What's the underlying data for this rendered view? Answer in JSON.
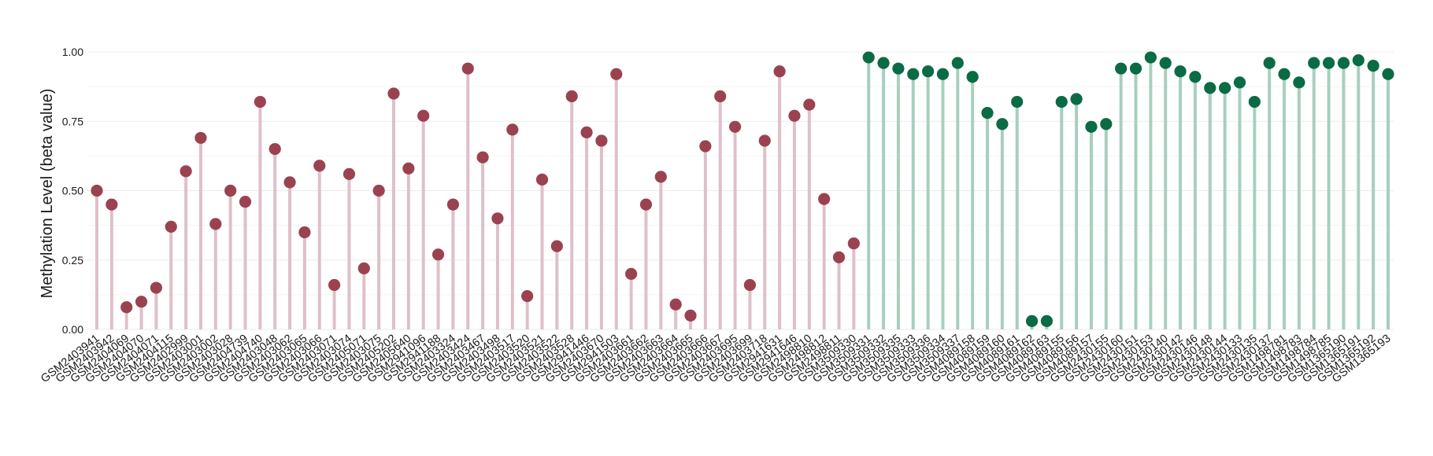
{
  "chart_data": {
    "type": "lollipop",
    "title": "",
    "xlabel": "",
    "ylabel": "Methylation Level (beta value)",
    "ylim": [
      0,
      1
    ],
    "yticks": [
      "0.00",
      "0.25",
      "0.50",
      "0.75",
      "1.00"
    ],
    "grid": true,
    "legend": "none",
    "group_colors": {
      "group1": {
        "stem": "#dfc0c8",
        "point": "#9b4250"
      },
      "group2": {
        "stem": "#a8cfbe",
        "point": "#0a6b45"
      }
    },
    "points": [
      {
        "x": "GSM2403941",
        "y": 0.5,
        "group": "group1"
      },
      {
        "x": "GSM2403942",
        "y": 0.45,
        "group": "group1"
      },
      {
        "x": "GSM2404069",
        "y": 0.08,
        "group": "group1"
      },
      {
        "x": "GSM2404070",
        "y": 0.1,
        "group": "group1"
      },
      {
        "x": "GSM2404071",
        "y": 0.15,
        "group": "group1"
      },
      {
        "x": "GSM2404115",
        "y": 0.37,
        "group": "group1"
      },
      {
        "x": "GSM2402999",
        "y": 0.57,
        "group": "group1"
      },
      {
        "x": "GSM2403001",
        "y": 0.69,
        "group": "group1"
      },
      {
        "x": "GSM2403002",
        "y": 0.38,
        "group": "group1"
      },
      {
        "x": "GSM2403028",
        "y": 0.5,
        "group": "group1"
      },
      {
        "x": "GSM2404739",
        "y": 0.46,
        "group": "group1"
      },
      {
        "x": "GSM2404740",
        "y": 0.82,
        "group": "group1"
      },
      {
        "x": "GSM2403048",
        "y": 0.65,
        "group": "group1"
      },
      {
        "x": "GSM2403062",
        "y": 0.53,
        "group": "group1"
      },
      {
        "x": "GSM2403065",
        "y": 0.35,
        "group": "group1"
      },
      {
        "x": "GSM2403066",
        "y": 0.59,
        "group": "group1"
      },
      {
        "x": "GSM2403071",
        "y": 0.16,
        "group": "group1"
      },
      {
        "x": "GSM2403074",
        "y": 0.56,
        "group": "group1"
      },
      {
        "x": "GSM2405071",
        "y": 0.22,
        "group": "group1"
      },
      {
        "x": "GSM2403075",
        "y": 0.5,
        "group": "group1"
      },
      {
        "x": "GSM2405202",
        "y": 0.85,
        "group": "group1"
      },
      {
        "x": "GSM2405640",
        "y": 0.58,
        "group": "group1"
      },
      {
        "x": "GSM2941096",
        "y": 0.77,
        "group": "group1"
      },
      {
        "x": "GSM2941188",
        "y": 0.27,
        "group": "group1"
      },
      {
        "x": "GSM2403324",
        "y": 0.45,
        "group": "group1"
      },
      {
        "x": "GSM2403424",
        "y": 0.94,
        "group": "group1"
      },
      {
        "x": "GSM2403467",
        "y": 0.62,
        "group": "group1"
      },
      {
        "x": "GSM2403498",
        "y": 0.4,
        "group": "group1"
      },
      {
        "x": "GSM2403517",
        "y": 0.72,
        "group": "group1"
      },
      {
        "x": "GSM2403520",
        "y": 0.12,
        "group": "group1"
      },
      {
        "x": "GSM2403521",
        "y": 0.54,
        "group": "group1"
      },
      {
        "x": "GSM2403522",
        "y": 0.3,
        "group": "group1"
      },
      {
        "x": "GSM2403528",
        "y": 0.84,
        "group": "group1"
      },
      {
        "x": "GSM2941446",
        "y": 0.71,
        "group": "group1"
      },
      {
        "x": "GSM2403670",
        "y": 0.68,
        "group": "group1"
      },
      {
        "x": "GSM2941503",
        "y": 0.92,
        "group": "group1"
      },
      {
        "x": "GSM2403661",
        "y": 0.2,
        "group": "group1"
      },
      {
        "x": "GSM2403662",
        "y": 0.45,
        "group": "group1"
      },
      {
        "x": "GSM2403663",
        "y": 0.55,
        "group": "group1"
      },
      {
        "x": "GSM2403664",
        "y": 0.09,
        "group": "group1"
      },
      {
        "x": "GSM2403665",
        "y": 0.05,
        "group": "group1"
      },
      {
        "x": "GSM2403666",
        "y": 0.66,
        "group": "group1"
      },
      {
        "x": "GSM2403667",
        "y": 0.84,
        "group": "group1"
      },
      {
        "x": "GSM2403695",
        "y": 0.73,
        "group": "group1"
      },
      {
        "x": "GSM2403699",
        "y": 0.16,
        "group": "group1"
      },
      {
        "x": "GSM2403718",
        "y": 0.68,
        "group": "group1"
      },
      {
        "x": "GSM2941631",
        "y": 0.93,
        "group": "group1"
      },
      {
        "x": "GSM2941646",
        "y": 0.77,
        "group": "group1"
      },
      {
        "x": "GSM2498810",
        "y": 0.81,
        "group": "group1"
      },
      {
        "x": "GSM2498812",
        "y": 0.47,
        "group": "group1"
      },
      {
        "x": "GSM2498811",
        "y": 0.26,
        "group": "group1"
      },
      {
        "x": "GSM3509330",
        "y": 0.31,
        "group": "group1"
      },
      {
        "x": "GSM3509331",
        "y": 0.98,
        "group": "group2"
      },
      {
        "x": "GSM3509332",
        "y": 0.96,
        "group": "group2"
      },
      {
        "x": "GSM3509335",
        "y": 0.94,
        "group": "group2"
      },
      {
        "x": "GSM3509333",
        "y": 0.92,
        "group": "group2"
      },
      {
        "x": "GSM3509336",
        "y": 0.93,
        "group": "group2"
      },
      {
        "x": "GSM3509334",
        "y": 0.92,
        "group": "group2"
      },
      {
        "x": "GSM3509337",
        "y": 0.96,
        "group": "group2"
      },
      {
        "x": "GSM4089158",
        "y": 0.91,
        "group": "group2"
      },
      {
        "x": "GSM4089159",
        "y": 0.78,
        "group": "group2"
      },
      {
        "x": "GSM4089160",
        "y": 0.74,
        "group": "group2"
      },
      {
        "x": "GSM4089161",
        "y": 0.82,
        "group": "group2"
      },
      {
        "x": "GSM4089162",
        "y": 0.03,
        "group": "group2"
      },
      {
        "x": "GSM4089163",
        "y": 0.03,
        "group": "group2"
      },
      {
        "x": "GSM4089155",
        "y": 0.82,
        "group": "group2"
      },
      {
        "x": "GSM4089156",
        "y": 0.83,
        "group": "group2"
      },
      {
        "x": "GSM4089157",
        "y": 0.73,
        "group": "group2"
      },
      {
        "x": "GSM2430155",
        "y": 0.74,
        "group": "group2"
      },
      {
        "x": "GSM2430160",
        "y": 0.94,
        "group": "group2"
      },
      {
        "x": "GSM2430151",
        "y": 0.94,
        "group": "group2"
      },
      {
        "x": "GSM2430153",
        "y": 0.98,
        "group": "group2"
      },
      {
        "x": "GSM2430140",
        "y": 0.96,
        "group": "group2"
      },
      {
        "x": "GSM2430142",
        "y": 0.93,
        "group": "group2"
      },
      {
        "x": "GSM2430146",
        "y": 0.91,
        "group": "group2"
      },
      {
        "x": "GSM2430148",
        "y": 0.87,
        "group": "group2"
      },
      {
        "x": "GSM2430144",
        "y": 0.87,
        "group": "group2"
      },
      {
        "x": "GSM2430133",
        "y": 0.89,
        "group": "group2"
      },
      {
        "x": "GSM2430135",
        "y": 0.82,
        "group": "group2"
      },
      {
        "x": "GSM2430137",
        "y": 0.96,
        "group": "group2"
      },
      {
        "x": "GSM1498781",
        "y": 0.92,
        "group": "group2"
      },
      {
        "x": "GSM1498783",
        "y": 0.89,
        "group": "group2"
      },
      {
        "x": "GSM1498784",
        "y": 0.96,
        "group": "group2"
      },
      {
        "x": "GSM1498785",
        "y": 0.96,
        "group": "group2"
      },
      {
        "x": "GSM1365190",
        "y": 0.96,
        "group": "group2"
      },
      {
        "x": "GSM1365191",
        "y": 0.97,
        "group": "group2"
      },
      {
        "x": "GSM1365192",
        "y": 0.95,
        "group": "group2"
      },
      {
        "x": "GSM1365193",
        "y": 0.92,
        "group": "group2"
      }
    ]
  }
}
